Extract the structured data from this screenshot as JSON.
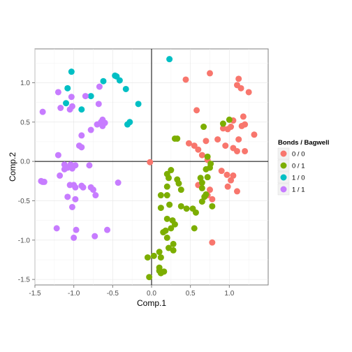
{
  "chart_data": {
    "type": "scatter",
    "xlabel": "Comp.1",
    "ylabel": "Comp.2",
    "xlim": [
      -1.5,
      1.5
    ],
    "ylim": [
      -1.57,
      1.43
    ],
    "x_ticks": [
      -1.5,
      -1.0,
      -0.5,
      0.0,
      0.5,
      1.0
    ],
    "x_tick_labels": [
      "-1.5",
      "-1.0",
      "-0.5",
      "0.0",
      "0.5",
      "1.0"
    ],
    "y_ticks": [
      -1.5,
      -1.0,
      -0.5,
      0.0,
      0.5,
      1.0
    ],
    "y_tick_labels": [
      "-1.5",
      "-1.0",
      "-0.5",
      "0.0",
      "0.5",
      "1.0"
    ],
    "reference_lines": {
      "x": 0,
      "y": 0
    },
    "grid": true,
    "legend": {
      "title": "Bonds / Bagwell",
      "position": "right",
      "entries": [
        {
          "label": "0 / 0",
          "color": "#F8766D"
        },
        {
          "label": "0 / 1",
          "color": "#7CAE00"
        },
        {
          "label": "1 / 0",
          "color": "#00BFC4"
        },
        {
          "label": "1 / 1",
          "color": "#C77CFF"
        }
      ]
    },
    "series": [
      {
        "name": "0 / 0",
        "color": "#F8766D",
        "points": [
          [
            1.12,
            1.05
          ],
          [
            0.44,
            1.04
          ],
          [
            0.75,
            1.12
          ],
          [
            1.1,
            0.97
          ],
          [
            1.15,
            0.93
          ],
          [
            1.25,
            0.88
          ],
          [
            0.58,
            0.65
          ],
          [
            1.18,
            0.57
          ],
          [
            1.05,
            0.52
          ],
          [
            1.2,
            0.47
          ],
          [
            1.16,
            0.45
          ],
          [
            1.02,
            0.44
          ],
          [
            0.98,
            0.41
          ],
          [
            0.92,
            0.42
          ],
          [
            1.32,
            0.34
          ],
          [
            1.12,
            0.28
          ],
          [
            0.95,
            0.2
          ],
          [
            0.85,
            0.28
          ],
          [
            0.7,
            0.26
          ],
          [
            1.05,
            0.17
          ],
          [
            1.1,
            0.13
          ],
          [
            1.2,
            0.13
          ],
          [
            0.48,
            0.23
          ],
          [
            0.55,
            0.2
          ],
          [
            0.6,
            0.15
          ],
          [
            0.65,
            0.08
          ],
          [
            0.72,
            0.02
          ],
          [
            0.9,
            -0.12
          ],
          [
            0.97,
            -0.17
          ],
          [
            1.05,
            -0.18
          ],
          [
            1.02,
            -0.24
          ],
          [
            0.98,
            -0.32
          ],
          [
            1.1,
            -0.38
          ],
          [
            0.75,
            -0.36
          ],
          [
            0.78,
            -0.48
          ],
          [
            0.6,
            -0.3
          ],
          [
            0.72,
            -0.43
          ],
          [
            0.78,
            -1.03
          ],
          [
            -0.02,
            -0.01
          ]
        ]
      },
      {
        "name": "0 / 1",
        "color": "#7CAE00",
        "points": [
          [
            1.0,
            0.53
          ],
          [
            0.92,
            0.48
          ],
          [
            0.67,
            0.44
          ],
          [
            0.3,
            0.29
          ],
          [
            0.33,
            0.29
          ],
          [
            0.72,
            0.06
          ],
          [
            0.76,
            -0.03
          ],
          [
            0.75,
            -0.08
          ],
          [
            0.7,
            -0.1
          ],
          [
            0.72,
            -0.2
          ],
          [
            0.63,
            -0.21
          ],
          [
            0.65,
            -0.27
          ],
          [
            0.25,
            -0.11
          ],
          [
            0.2,
            -0.16
          ],
          [
            0.22,
            -0.21
          ],
          [
            0.33,
            -0.23
          ],
          [
            0.35,
            -0.28
          ],
          [
            0.38,
            -0.36
          ],
          [
            0.2,
            -0.32
          ],
          [
            0.12,
            -0.43
          ],
          [
            0.2,
            -0.43
          ],
          [
            0.65,
            -0.34
          ],
          [
            0.7,
            -0.42
          ],
          [
            0.68,
            -0.45
          ],
          [
            0.65,
            -0.51
          ],
          [
            0.53,
            -0.6
          ],
          [
            0.57,
            -0.65
          ],
          [
            0.45,
            -0.6
          ],
          [
            0.38,
            -0.57
          ],
          [
            0.78,
            -0.57
          ],
          [
            0.23,
            -0.55
          ],
          [
            0.12,
            -0.59
          ],
          [
            0.2,
            -0.73
          ],
          [
            0.27,
            -0.75
          ],
          [
            0.3,
            -0.8
          ],
          [
            0.25,
            -0.85
          ],
          [
            0.55,
            -0.85
          ],
          [
            0.18,
            -0.88
          ],
          [
            0.15,
            -0.9
          ],
          [
            0.2,
            -0.97
          ],
          [
            0.28,
            -1.05
          ],
          [
            0.22,
            -1.1
          ],
          [
            0.28,
            -1.13
          ],
          [
            0.1,
            -1.15
          ],
          [
            0.03,
            -1.2
          ],
          [
            -0.05,
            -1.22
          ],
          [
            0.12,
            -1.22
          ],
          [
            0.1,
            -1.35
          ],
          [
            0.1,
            -1.39
          ],
          [
            0.16,
            -1.4
          ],
          [
            0.12,
            -1.42
          ],
          [
            -0.03,
            -1.47
          ]
        ]
      },
      {
        "name": "1 / 0",
        "color": "#00BFC4",
        "points": [
          [
            0.23,
            1.3
          ],
          [
            -1.03,
            1.14
          ],
          [
            -0.47,
            1.09
          ],
          [
            -0.45,
            1.08
          ],
          [
            -0.41,
            1.03
          ],
          [
            -0.62,
            1.02
          ],
          [
            -1.08,
            0.93
          ],
          [
            -0.33,
            0.92
          ],
          [
            -0.78,
            0.83
          ],
          [
            -1.1,
            0.74
          ],
          [
            -0.17,
            0.73
          ],
          [
            -0.9,
            0.66
          ],
          [
            -0.28,
            0.5
          ],
          [
            -0.31,
            0.47
          ]
        ]
      },
      {
        "name": "1 / 1",
        "color": "#C77CFF",
        "points": [
          [
            -0.67,
            0.95
          ],
          [
            -1.2,
            0.88
          ],
          [
            -1.03,
            0.82
          ],
          [
            -0.85,
            0.83
          ],
          [
            -1.02,
            0.7
          ],
          [
            -0.68,
            0.73
          ],
          [
            -1.17,
            0.68
          ],
          [
            -1.05,
            0.66
          ],
          [
            -1.4,
            0.63
          ],
          [
            -0.63,
            0.53
          ],
          [
            -0.65,
            0.5
          ],
          [
            -0.6,
            0.49
          ],
          [
            -0.63,
            0.45
          ],
          [
            -0.7,
            0.47
          ],
          [
            -0.78,
            0.4
          ],
          [
            -0.9,
            0.33
          ],
          [
            -0.93,
            0.2
          ],
          [
            -0.9,
            0.18
          ],
          [
            -1.2,
            0.08
          ],
          [
            -1.12,
            -0.04
          ],
          [
            -1.04,
            -0.04
          ],
          [
            -0.98,
            -0.05
          ],
          [
            -1.08,
            -0.08
          ],
          [
            -1.02,
            -0.09
          ],
          [
            -1.12,
            -0.1
          ],
          [
            -0.8,
            -0.05
          ],
          [
            -1.18,
            -0.18
          ],
          [
            -1.42,
            -0.25
          ],
          [
            -1.38,
            -0.26
          ],
          [
            -1.4,
            -0.26
          ],
          [
            -1.05,
            -0.3
          ],
          [
            -1.0,
            -0.3
          ],
          [
            -0.98,
            -0.33
          ],
          [
            -0.9,
            -0.31
          ],
          [
            -0.88,
            -0.33
          ],
          [
            -0.78,
            -0.33
          ],
          [
            -0.75,
            -0.36
          ],
          [
            -0.43,
            -0.27
          ],
          [
            -1.08,
            -0.45
          ],
          [
            -0.98,
            -0.48
          ],
          [
            -0.72,
            -0.43
          ],
          [
            -1.02,
            -0.58
          ],
          [
            -1.22,
            -0.85
          ],
          [
            -0.97,
            -0.87
          ],
          [
            -0.57,
            -0.87
          ],
          [
            -0.73,
            -0.95
          ],
          [
            -1.0,
            -0.97
          ]
        ]
      }
    ]
  }
}
